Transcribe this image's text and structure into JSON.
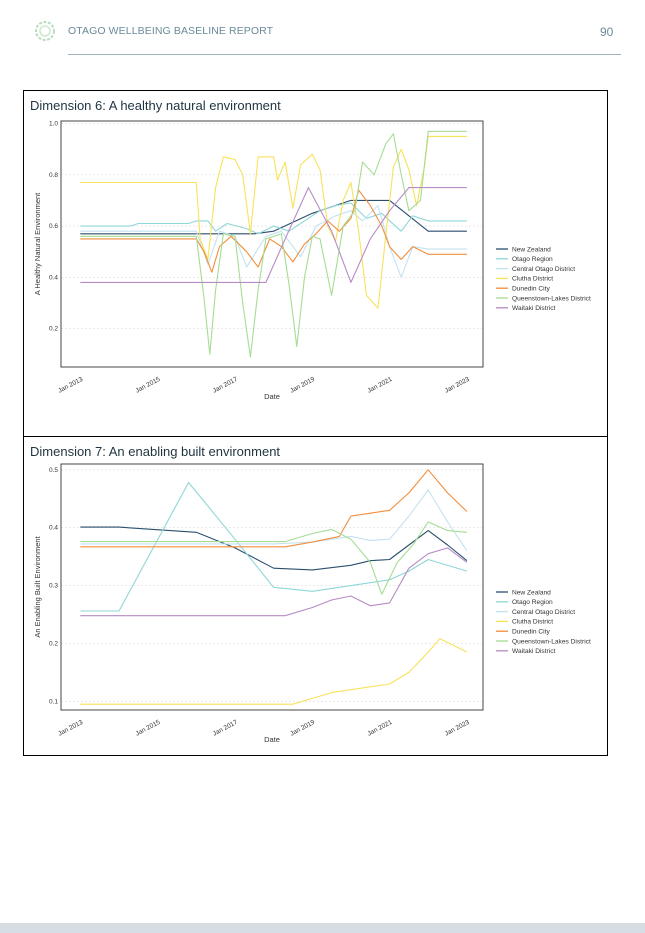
{
  "header": {
    "title": "OTAGO WELLBEING BASELINE REPORT",
    "page_number": "90"
  },
  "colors": {
    "New Zealand": "#2b4f6e",
    "Otago Region": "#8fd6d6",
    "Central Otago District": "#c3e2f2",
    "Clutha District": "#f8e25a",
    "Dunedin City": "#f28e3c",
    "Queenstown-Lakes District": "#a6dc94",
    "Waitaki District": "#b88bc4"
  },
  "chart_data": [
    {
      "type": "line",
      "panel_title": "Dimension 6: A healthy natural environment",
      "xlabel": "Date",
      "ylabel": "A Healthy Natural Environment",
      "x_ticks": [
        "Jan 2013",
        "Jan 2015",
        "Jan 2017",
        "Jan 2019",
        "Jan 2021",
        "Jan 2023"
      ],
      "y_ticks": [
        "0.2",
        "0.4",
        "0.6",
        "0.8",
        "1.0"
      ],
      "xlim": [
        "2012-07",
        "2023-06"
      ],
      "ylim": [
        0.05,
        1.01
      ],
      "grid": true,
      "legend_position": "right",
      "series": [
        {
          "name": "New Zealand",
          "points": [
            [
              2013.0,
              0.57
            ],
            [
              2016.0,
              0.57
            ],
            [
              2017.5,
              0.57
            ],
            [
              2018.0,
              0.58
            ],
            [
              2019.0,
              0.65
            ],
            [
              2020.0,
              0.7
            ],
            [
              2021.0,
              0.7
            ],
            [
              2022.0,
              0.58
            ],
            [
              2023.0,
              0.58
            ]
          ]
        },
        {
          "name": "Otago Region",
          "points": [
            [
              2013.0,
              0.6
            ],
            [
              2014.3,
              0.6
            ],
            [
              2014.5,
              0.61
            ],
            [
              2015.8,
              0.61
            ],
            [
              2016.0,
              0.62
            ],
            [
              2016.3,
              0.62
            ],
            [
              2016.5,
              0.58
            ],
            [
              2016.8,
              0.61
            ],
            [
              2017.3,
              0.59
            ],
            [
              2017.6,
              0.57
            ],
            [
              2018.0,
              0.6
            ],
            [
              2018.4,
              0.58
            ],
            [
              2018.8,
              0.62
            ],
            [
              2019.2,
              0.66
            ],
            [
              2019.6,
              0.68
            ],
            [
              2020.0,
              0.69
            ],
            [
              2020.4,
              0.63
            ],
            [
              2020.8,
              0.65
            ],
            [
              2021.0,
              0.62
            ],
            [
              2021.3,
              0.58
            ],
            [
              2021.6,
              0.64
            ],
            [
              2022.0,
              0.62
            ],
            [
              2023.0,
              0.62
            ]
          ]
        },
        {
          "name": "Central Otago District",
          "points": [
            [
              2013.0,
              0.58
            ],
            [
              2016.0,
              0.58
            ],
            [
              2016.3,
              0.45
            ],
            [
              2016.6,
              0.58
            ],
            [
              2017.0,
              0.56
            ],
            [
              2017.3,
              0.44
            ],
            [
              2017.8,
              0.56
            ],
            [
              2018.2,
              0.58
            ],
            [
              2018.7,
              0.48
            ],
            [
              2019.1,
              0.6
            ],
            [
              2019.6,
              0.64
            ],
            [
              2020.0,
              0.66
            ],
            [
              2020.3,
              0.62
            ],
            [
              2020.7,
              0.68
            ],
            [
              2021.0,
              0.52
            ],
            [
              2021.3,
              0.4
            ],
            [
              2021.6,
              0.52
            ],
            [
              2022.0,
              0.51
            ],
            [
              2023.0,
              0.51
            ]
          ]
        },
        {
          "name": "Clutha District",
          "points": [
            [
              2013.0,
              0.77
            ],
            [
              2016.0,
              0.77
            ],
            [
              2016.1,
              0.55
            ],
            [
              2016.3,
              0.47
            ],
            [
              2016.5,
              0.75
            ],
            [
              2016.7,
              0.87
            ],
            [
              2017.0,
              0.86
            ],
            [
              2017.2,
              0.8
            ],
            [
              2017.4,
              0.57
            ],
            [
              2017.6,
              0.87
            ],
            [
              2018.0,
              0.87
            ],
            [
              2018.1,
              0.78
            ],
            [
              2018.3,
              0.85
            ],
            [
              2018.5,
              0.67
            ],
            [
              2018.7,
              0.84
            ],
            [
              2019.0,
              0.88
            ],
            [
              2019.2,
              0.82
            ],
            [
              2019.4,
              0.6
            ],
            [
              2019.6,
              0.54
            ],
            [
              2019.8,
              0.7
            ],
            [
              2020.0,
              0.77
            ],
            [
              2020.2,
              0.58
            ],
            [
              2020.4,
              0.33
            ],
            [
              2020.7,
              0.28
            ],
            [
              2020.9,
              0.56
            ],
            [
              2021.1,
              0.83
            ],
            [
              2021.3,
              0.9
            ],
            [
              2021.5,
              0.82
            ],
            [
              2021.7,
              0.68
            ],
            [
              2021.9,
              0.83
            ],
            [
              2022.0,
              0.95
            ],
            [
              2023.0,
              0.95
            ]
          ]
        },
        {
          "name": "Dunedin City",
          "points": [
            [
              2013.0,
              0.55
            ],
            [
              2016.0,
              0.55
            ],
            [
              2016.2,
              0.5
            ],
            [
              2016.4,
              0.42
            ],
            [
              2016.6,
              0.52
            ],
            [
              2016.9,
              0.56
            ],
            [
              2017.3,
              0.5
            ],
            [
              2017.6,
              0.44
            ],
            [
              2017.9,
              0.55
            ],
            [
              2018.2,
              0.52
            ],
            [
              2018.5,
              0.46
            ],
            [
              2018.8,
              0.53
            ],
            [
              2019.1,
              0.57
            ],
            [
              2019.4,
              0.62
            ],
            [
              2019.7,
              0.58
            ],
            [
              2020.0,
              0.63
            ],
            [
              2020.2,
              0.74
            ],
            [
              2020.5,
              0.68
            ],
            [
              2020.8,
              0.6
            ],
            [
              2021.0,
              0.52
            ],
            [
              2021.3,
              0.47
            ],
            [
              2021.6,
              0.52
            ],
            [
              2022.0,
              0.49
            ],
            [
              2023.0,
              0.49
            ]
          ]
        },
        {
          "name": "Queenstown-Lakes District",
          "points": [
            [
              2013.0,
              0.56
            ],
            [
              2016.0,
              0.56
            ],
            [
              2016.2,
              0.32
            ],
            [
              2016.35,
              0.1
            ],
            [
              2016.5,
              0.35
            ],
            [
              2016.7,
              0.57
            ],
            [
              2017.0,
              0.56
            ],
            [
              2017.2,
              0.3
            ],
            [
              2017.4,
              0.09
            ],
            [
              2017.6,
              0.35
            ],
            [
              2017.8,
              0.55
            ],
            [
              2018.2,
              0.57
            ],
            [
              2018.4,
              0.37
            ],
            [
              2018.6,
              0.13
            ],
            [
              2018.8,
              0.4
            ],
            [
              2019.0,
              0.56
            ],
            [
              2019.2,
              0.55
            ],
            [
              2019.5,
              0.33
            ],
            [
              2019.8,
              0.6
            ],
            [
              2020.1,
              0.66
            ],
            [
              2020.3,
              0.85
            ],
            [
              2020.6,
              0.8
            ],
            [
              2020.9,
              0.92
            ],
            [
              2021.1,
              0.96
            ],
            [
              2021.3,
              0.8
            ],
            [
              2021.5,
              0.66
            ],
            [
              2021.8,
              0.7
            ],
            [
              2022.0,
              0.97
            ],
            [
              2023.0,
              0.97
            ]
          ]
        },
        {
          "name": "Waitaki District",
          "points": [
            [
              2013.0,
              0.38
            ],
            [
              2017.8,
              0.38
            ],
            [
              2018.3,
              0.55
            ],
            [
              2018.9,
              0.75
            ],
            [
              2019.5,
              0.58
            ],
            [
              2020.0,
              0.38
            ],
            [
              2020.5,
              0.55
            ],
            [
              2021.0,
              0.66
            ],
            [
              2021.5,
              0.75
            ],
            [
              2022.0,
              0.75
            ],
            [
              2023.0,
              0.75
            ]
          ]
        }
      ]
    },
    {
      "type": "line",
      "panel_title": "Dimension 7: An enabling built environment",
      "xlabel": "Date",
      "ylabel": "An Enabling Built Environment",
      "x_ticks": [
        "Jan 2013",
        "Jan 2015",
        "Jan 2017",
        "Jan 2019",
        "Jan 2021",
        "Jan 2023"
      ],
      "y_ticks": [
        "0.1",
        "0.2",
        "0.3",
        "0.4",
        "0.5"
      ],
      "xlim": [
        "2012-07",
        "2023-06"
      ],
      "ylim": [
        0.085,
        0.51
      ],
      "grid": true,
      "legend_position": "right",
      "series": [
        {
          "name": "New Zealand",
          "points": [
            [
              2013.0,
              0.401
            ],
            [
              2014.0,
              0.401
            ],
            [
              2016.0,
              0.392
            ],
            [
              2017.0,
              0.365
            ],
            [
              2018.0,
              0.33
            ],
            [
              2019.0,
              0.327
            ],
            [
              2020.0,
              0.335
            ],
            [
              2020.5,
              0.343
            ],
            [
              2021.0,
              0.345
            ],
            [
              2021.5,
              0.37
            ],
            [
              2022.0,
              0.395
            ],
            [
              2022.5,
              0.37
            ],
            [
              2023.0,
              0.343
            ]
          ]
        },
        {
          "name": "Otago Region",
          "points": [
            [
              2013.0,
              0.256
            ],
            [
              2014.0,
              0.256
            ],
            [
              2015.8,
              0.478
            ],
            [
              2017.0,
              0.38
            ],
            [
              2018.0,
              0.297
            ],
            [
              2019.0,
              0.29
            ],
            [
              2020.0,
              0.3
            ],
            [
              2021.0,
              0.31
            ],
            [
              2021.5,
              0.325
            ],
            [
              2022.0,
              0.345
            ],
            [
              2023.0,
              0.325
            ]
          ]
        },
        {
          "name": "Central Otago District",
          "points": [
            [
              2013.0,
              0.372
            ],
            [
              2018.0,
              0.372
            ],
            [
              2019.0,
              0.375
            ],
            [
              2020.0,
              0.385
            ],
            [
              2020.5,
              0.378
            ],
            [
              2021.0,
              0.38
            ],
            [
              2021.5,
              0.42
            ],
            [
              2022.0,
              0.465
            ],
            [
              2022.5,
              0.41
            ],
            [
              2023.0,
              0.36
            ]
          ]
        },
        {
          "name": "Clutha District",
          "points": [
            [
              2013.0,
              0.095
            ],
            [
              2018.5,
              0.095
            ],
            [
              2019.0,
              0.105
            ],
            [
              2019.5,
              0.115
            ],
            [
              2020.0,
              0.12
            ],
            [
              2020.5,
              0.125
            ],
            [
              2021.0,
              0.13
            ],
            [
              2021.5,
              0.15
            ],
            [
              2022.0,
              0.185
            ],
            [
              2022.3,
              0.208
            ],
            [
              2022.7,
              0.195
            ],
            [
              2023.0,
              0.185
            ]
          ]
        },
        {
          "name": "Dunedin City",
          "points": [
            [
              2013.0,
              0.367
            ],
            [
              2018.3,
              0.367
            ],
            [
              2019.0,
              0.375
            ],
            [
              2019.7,
              0.385
            ],
            [
              2020.0,
              0.42
            ],
            [
              2020.5,
              0.425
            ],
            [
              2021.0,
              0.43
            ],
            [
              2021.5,
              0.46
            ],
            [
              2022.0,
              0.5
            ],
            [
              2022.5,
              0.46
            ],
            [
              2023.0,
              0.428
            ]
          ]
        },
        {
          "name": "Queenstown-Lakes District",
          "points": [
            [
              2013.0,
              0.376
            ],
            [
              2018.3,
              0.376
            ],
            [
              2019.0,
              0.39
            ],
            [
              2019.5,
              0.397
            ],
            [
              2020.0,
              0.38
            ],
            [
              2020.5,
              0.34
            ],
            [
              2020.8,
              0.285
            ],
            [
              2021.2,
              0.34
            ],
            [
              2021.6,
              0.37
            ],
            [
              2022.0,
              0.41
            ],
            [
              2022.5,
              0.395
            ],
            [
              2023.0,
              0.392
            ]
          ]
        },
        {
          "name": "Waitaki District",
          "points": [
            [
              2013.0,
              0.248
            ],
            [
              2018.3,
              0.248
            ],
            [
              2019.0,
              0.262
            ],
            [
              2019.5,
              0.275
            ],
            [
              2020.0,
              0.282
            ],
            [
              2020.5,
              0.265
            ],
            [
              2021.0,
              0.27
            ],
            [
              2021.5,
              0.33
            ],
            [
              2022.0,
              0.355
            ],
            [
              2022.5,
              0.365
            ],
            [
              2023.0,
              0.34
            ]
          ]
        }
      ]
    }
  ]
}
